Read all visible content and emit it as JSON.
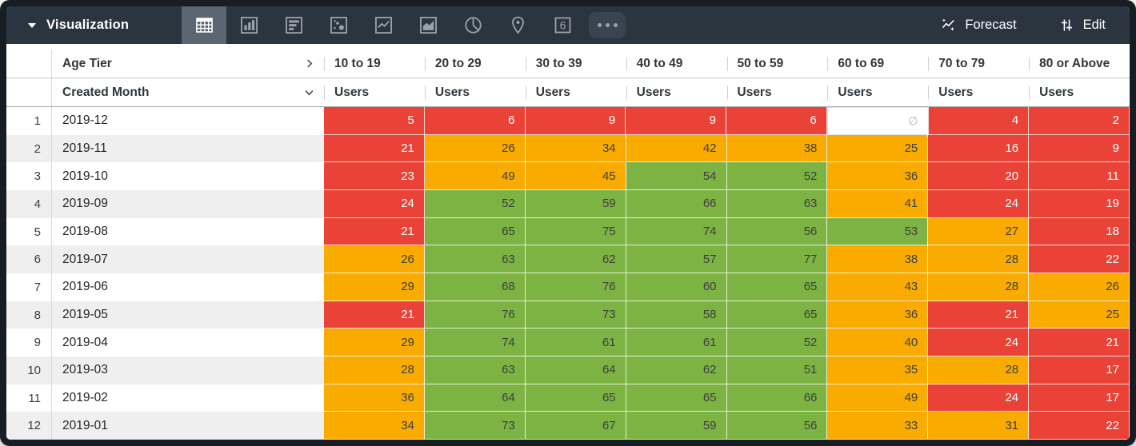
{
  "topbar": {
    "title": "Visualization",
    "viz_tabs": [
      "table",
      "column",
      "bar",
      "scatter",
      "line",
      "area",
      "pie",
      "map",
      "single-value",
      "more"
    ],
    "selected_tab": "table",
    "single_value_glyph": "6",
    "forecast_label": "Forecast",
    "edit_label": "Edit"
  },
  "table": {
    "dimension_label": "Age Tier",
    "row_dimension_label": "Created Month",
    "measure_label": "Users",
    "columns": [
      "10 to 19",
      "20 to 29",
      "30 to 39",
      "40 to 49",
      "50 to 59",
      "60 to 69",
      "70 to 79",
      "80 or Above"
    ],
    "null_symbol": "∅",
    "rows": [
      {
        "n": "1",
        "month": "2019-12",
        "cells": [
          {
            "v": "5",
            "c": "red"
          },
          {
            "v": "6",
            "c": "red"
          },
          {
            "v": "9",
            "c": "red"
          },
          {
            "v": "9",
            "c": "red"
          },
          {
            "v": "6",
            "c": "red"
          },
          {
            "v": "∅",
            "c": "null"
          },
          {
            "v": "4",
            "c": "red"
          },
          {
            "v": "2",
            "c": "red"
          }
        ]
      },
      {
        "n": "2",
        "month": "2019-11",
        "cells": [
          {
            "v": "21",
            "c": "red"
          },
          {
            "v": "26",
            "c": "orange"
          },
          {
            "v": "34",
            "c": "orange"
          },
          {
            "v": "42",
            "c": "orange"
          },
          {
            "v": "38",
            "c": "orange"
          },
          {
            "v": "25",
            "c": "orange"
          },
          {
            "v": "16",
            "c": "red"
          },
          {
            "v": "9",
            "c": "red"
          }
        ]
      },
      {
        "n": "3",
        "month": "2019-10",
        "cells": [
          {
            "v": "23",
            "c": "red"
          },
          {
            "v": "49",
            "c": "orange"
          },
          {
            "v": "45",
            "c": "orange"
          },
          {
            "v": "54",
            "c": "green"
          },
          {
            "v": "52",
            "c": "green"
          },
          {
            "v": "36",
            "c": "orange"
          },
          {
            "v": "20",
            "c": "red"
          },
          {
            "v": "11",
            "c": "red"
          }
        ]
      },
      {
        "n": "4",
        "month": "2019-09",
        "cells": [
          {
            "v": "24",
            "c": "red"
          },
          {
            "v": "52",
            "c": "green"
          },
          {
            "v": "59",
            "c": "green"
          },
          {
            "v": "66",
            "c": "green"
          },
          {
            "v": "63",
            "c": "green"
          },
          {
            "v": "41",
            "c": "orange"
          },
          {
            "v": "24",
            "c": "red"
          },
          {
            "v": "19",
            "c": "red"
          }
        ]
      },
      {
        "n": "5",
        "month": "2019-08",
        "cells": [
          {
            "v": "21",
            "c": "red"
          },
          {
            "v": "65",
            "c": "green"
          },
          {
            "v": "75",
            "c": "green"
          },
          {
            "v": "74",
            "c": "green"
          },
          {
            "v": "56",
            "c": "green"
          },
          {
            "v": "53",
            "c": "green"
          },
          {
            "v": "27",
            "c": "orange"
          },
          {
            "v": "18",
            "c": "red"
          }
        ]
      },
      {
        "n": "6",
        "month": "2019-07",
        "cells": [
          {
            "v": "26",
            "c": "orange"
          },
          {
            "v": "63",
            "c": "green"
          },
          {
            "v": "62",
            "c": "green"
          },
          {
            "v": "57",
            "c": "green"
          },
          {
            "v": "77",
            "c": "green"
          },
          {
            "v": "38",
            "c": "orange"
          },
          {
            "v": "28",
            "c": "orange"
          },
          {
            "v": "22",
            "c": "red"
          }
        ]
      },
      {
        "n": "7",
        "month": "2019-06",
        "cells": [
          {
            "v": "29",
            "c": "orange"
          },
          {
            "v": "68",
            "c": "green"
          },
          {
            "v": "76",
            "c": "green"
          },
          {
            "v": "60",
            "c": "green"
          },
          {
            "v": "65",
            "c": "green"
          },
          {
            "v": "43",
            "c": "orange"
          },
          {
            "v": "28",
            "c": "orange"
          },
          {
            "v": "26",
            "c": "orange"
          }
        ]
      },
      {
        "n": "8",
        "month": "2019-05",
        "cells": [
          {
            "v": "21",
            "c": "red"
          },
          {
            "v": "76",
            "c": "green"
          },
          {
            "v": "73",
            "c": "green"
          },
          {
            "v": "58",
            "c": "green"
          },
          {
            "v": "65",
            "c": "green"
          },
          {
            "v": "36",
            "c": "orange"
          },
          {
            "v": "21",
            "c": "red"
          },
          {
            "v": "25",
            "c": "orange"
          }
        ]
      },
      {
        "n": "9",
        "month": "2019-04",
        "cells": [
          {
            "v": "29",
            "c": "orange"
          },
          {
            "v": "74",
            "c": "green"
          },
          {
            "v": "61",
            "c": "green"
          },
          {
            "v": "61",
            "c": "green"
          },
          {
            "v": "52",
            "c": "green"
          },
          {
            "v": "40",
            "c": "orange"
          },
          {
            "v": "24",
            "c": "red"
          },
          {
            "v": "21",
            "c": "red"
          }
        ]
      },
      {
        "n": "10",
        "month": "2019-03",
        "cells": [
          {
            "v": "28",
            "c": "orange"
          },
          {
            "v": "63",
            "c": "green"
          },
          {
            "v": "64",
            "c": "green"
          },
          {
            "v": "62",
            "c": "green"
          },
          {
            "v": "51",
            "c": "green"
          },
          {
            "v": "35",
            "c": "orange"
          },
          {
            "v": "28",
            "c": "orange"
          },
          {
            "v": "17",
            "c": "red"
          }
        ]
      },
      {
        "n": "11",
        "month": "2019-02",
        "cells": [
          {
            "v": "36",
            "c": "orange"
          },
          {
            "v": "64",
            "c": "green"
          },
          {
            "v": "65",
            "c": "green"
          },
          {
            "v": "65",
            "c": "green"
          },
          {
            "v": "66",
            "c": "green"
          },
          {
            "v": "49",
            "c": "orange"
          },
          {
            "v": "24",
            "c": "red"
          },
          {
            "v": "17",
            "c": "red"
          }
        ]
      },
      {
        "n": "12",
        "month": "2019-01",
        "cells": [
          {
            "v": "34",
            "c": "orange"
          },
          {
            "v": "73",
            "c": "green"
          },
          {
            "v": "67",
            "c": "green"
          },
          {
            "v": "59",
            "c": "green"
          },
          {
            "v": "56",
            "c": "green"
          },
          {
            "v": "33",
            "c": "orange"
          },
          {
            "v": "31",
            "c": "orange"
          },
          {
            "v": "22",
            "c": "red"
          }
        ]
      }
    ]
  },
  "colors": {
    "red": "#EA4236",
    "orange": "#F9AB00",
    "green": "#7CB342",
    "topbar": "#2B3540",
    "selected_tab": "#5C6672",
    "stripe": "#EFEFEF"
  }
}
